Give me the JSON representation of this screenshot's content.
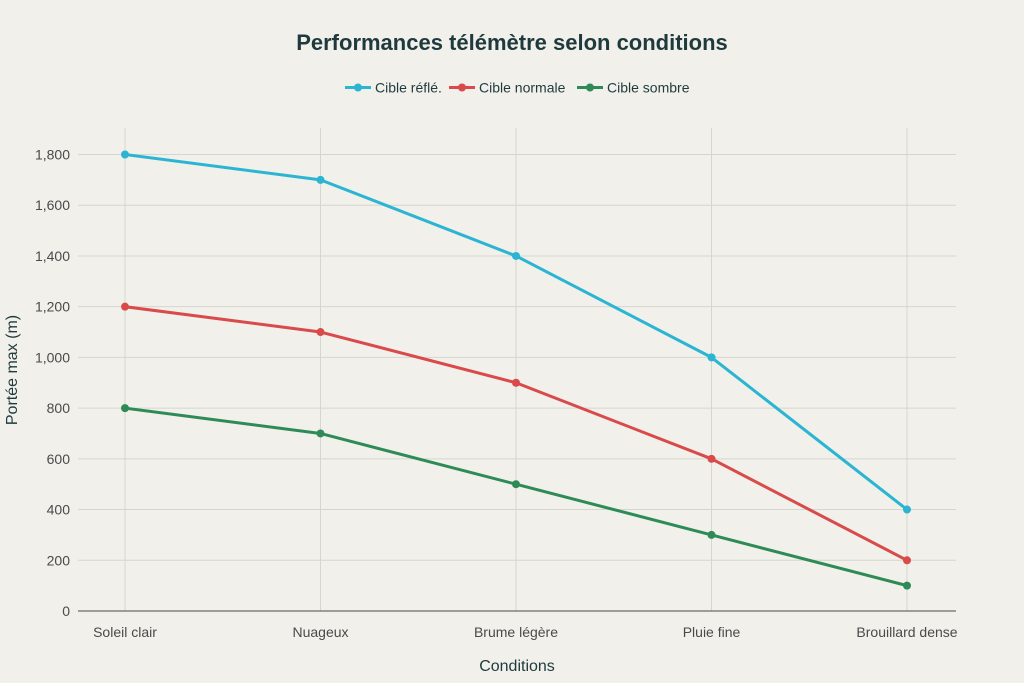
{
  "chart_data": {
    "type": "line",
    "title": "Performances télémètre selon conditions",
    "xlabel": "Conditions",
    "ylabel": "Portée max (m)",
    "categories": [
      "Soleil clair",
      "Nuageux",
      "Brume légère",
      "Pluie fine",
      "Brouillard dense"
    ],
    "ylim": [
      0,
      1900
    ],
    "yticks": [
      0,
      200,
      400,
      600,
      800,
      1000,
      1200,
      1400,
      1600,
      1800
    ],
    "ytick_labels": [
      "0",
      "200",
      "400",
      "600",
      "800",
      "1,000",
      "1,200",
      "1,400",
      "1,600",
      "1,800"
    ],
    "grid": true,
    "legend_position": "top-center",
    "series": [
      {
        "name": "Cible réflé.",
        "color": "#2bb5d3",
        "values": [
          1800,
          1700,
          1400,
          1000,
          400
        ]
      },
      {
        "name": "Cible normale",
        "color": "#d94a4a",
        "values": [
          1200,
          1100,
          900,
          600,
          200
        ]
      },
      {
        "name": "Cible sombre",
        "color": "#2e8b57",
        "values": [
          800,
          700,
          500,
          300,
          100
        ]
      }
    ]
  }
}
